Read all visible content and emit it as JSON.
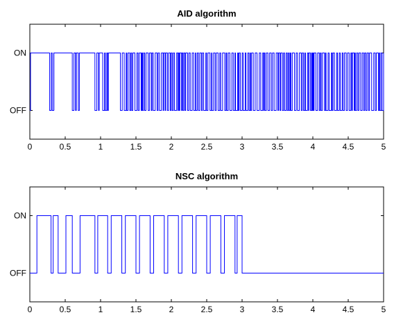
{
  "chart_data": [
    {
      "type": "line",
      "title": "AID algorithm",
      "xlabel": "",
      "ylabel": "",
      "xlim": [
        0,
        5
      ],
      "ylim": [
        -0.5,
        1.5
      ],
      "xticks": [
        0,
        0.5,
        1,
        1.5,
        2,
        2.5,
        3,
        3.5,
        4,
        4.5,
        5
      ],
      "xtick_labels": [
        "0",
        "0.5",
        "1",
        "1.5",
        "2",
        "2.5",
        "3",
        "3.5",
        "4",
        "4.5",
        "5"
      ],
      "yticks": [
        0,
        1
      ],
      "ytick_labels": [
        "OFF",
        "ON"
      ],
      "color": "#0000ff",
      "grid": false,
      "series": [
        {
          "signal_type": "step",
          "segments": [
            {
              "start": 0,
              "end": 0.01,
              "value": 0
            },
            {
              "start": 0.01,
              "end": 0.28,
              "value": 1
            },
            {
              "start": 0.28,
              "end": 0.34,
              "value": "switching"
            },
            {
              "start": 0.34,
              "end": 0.6,
              "value": 1
            },
            {
              "start": 0.6,
              "end": 0.7,
              "value": "switching"
            },
            {
              "start": 0.7,
              "end": 0.92,
              "value": 1
            },
            {
              "start": 0.92,
              "end": 0.98,
              "value": "switching"
            },
            {
              "start": 0.98,
              "end": 1.03,
              "value": 1
            },
            {
              "start": 1.03,
              "end": 1.11,
              "value": "switching"
            },
            {
              "start": 1.11,
              "end": 1.28,
              "value": 1
            },
            {
              "start": 1.28,
              "end": 5.0,
              "value": "switching"
            }
          ]
        }
      ]
    },
    {
      "type": "line",
      "title": "NSC algorithm",
      "xlabel": "",
      "ylabel": "",
      "xlim": [
        0,
        5
      ],
      "ylim": [
        -0.5,
        1.5
      ],
      "xticks": [
        0,
        0.5,
        1,
        1.5,
        2,
        2.5,
        3,
        3.5,
        4,
        4.5,
        5
      ],
      "xtick_labels": [
        "0",
        "0.5",
        "1",
        "1.5",
        "2",
        "2.5",
        "3",
        "3.5",
        "4",
        "4.5",
        "5"
      ],
      "yticks": [
        0,
        1
      ],
      "ytick_labels": [
        "OFF",
        "ON"
      ],
      "color": "#0000ff",
      "grid": false,
      "series": [
        {
          "signal_type": "step",
          "x": [
            0,
            0.1,
            0.1,
            0.3,
            0.3,
            0.33,
            0.33,
            0.4,
            0.4,
            0.51,
            0.51,
            0.6,
            0.6,
            0.71,
            0.71,
            0.92,
            0.92,
            0.96,
            0.96,
            1.1,
            1.1,
            1.15,
            1.15,
            1.3,
            1.3,
            1.35,
            1.35,
            1.5,
            1.5,
            1.55,
            1.55,
            1.7,
            1.7,
            1.75,
            1.75,
            1.9,
            1.9,
            1.95,
            1.95,
            2.1,
            2.1,
            2.15,
            2.15,
            2.3,
            2.3,
            2.35,
            2.35,
            2.5,
            2.5,
            2.55,
            2.55,
            2.7,
            2.7,
            2.75,
            2.75,
            2.9,
            2.9,
            2.93,
            2.93,
            3.0,
            3.0,
            5.0
          ],
          "y": [
            0,
            0,
            1,
            1,
            0,
            0,
            1,
            1,
            0,
            0,
            1,
            1,
            0,
            0,
            1,
            1,
            0,
            0,
            1,
            1,
            0,
            0,
            1,
            1,
            0,
            0,
            1,
            1,
            0,
            0,
            1,
            1,
            0,
            0,
            1,
            1,
            0,
            0,
            1,
            1,
            0,
            0,
            1,
            1,
            0,
            0,
            1,
            1,
            0,
            0,
            1,
            1,
            0,
            0,
            1,
            1,
            0,
            0,
            1,
            1,
            0,
            0
          ]
        }
      ]
    }
  ]
}
